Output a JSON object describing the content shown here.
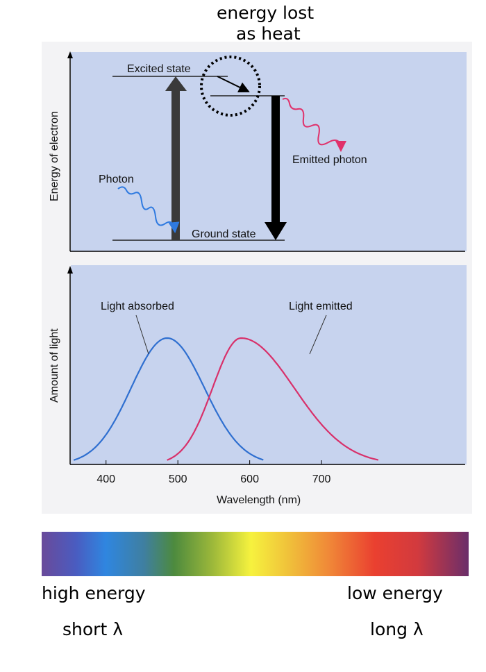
{
  "annotation": {
    "line1": "energy lost",
    "line2": "as heat"
  },
  "energy_diagram": {
    "y_axis_label": "Energy of electron",
    "excited_state": "Excited state",
    "ground_state": "Ground state",
    "photon": "Photon",
    "emitted_photon": "Emitted photon"
  },
  "spectrum_chart": {
    "y_axis_label": "Amount of light",
    "x_axis_label": "Wavelength (nm)",
    "ticks": [
      "400",
      "500",
      "600",
      "700"
    ],
    "absorbed_label": "Light absorbed",
    "emitted_label": "Light emitted"
  },
  "chart_data": {
    "type": "line",
    "xlabel": "Wavelength (nm)",
    "ylabel": "Amount of light",
    "xlim": [
      350,
      900
    ],
    "x_ticks": [
      400,
      500,
      600,
      700
    ],
    "grid": false,
    "series": [
      {
        "name": "Light absorbed",
        "color": "#2f6fd0",
        "peak_x": 485,
        "start_x": 355,
        "end_x": 620,
        "peak_y": 1.0
      },
      {
        "name": "Light emitted",
        "color": "#d8306a",
        "peak_x": 588,
        "start_x": 485,
        "end_x": 780,
        "peak_y": 1.0
      }
    ]
  },
  "spectrum_bar": {
    "left_top": "high energy",
    "left_bottom": "short λ",
    "right_top": "low energy",
    "right_bottom": "long λ"
  },
  "colors": {
    "panel": "#c7d3ee",
    "absorbed": "#2f6fd0",
    "emitted": "#d8306a"
  }
}
